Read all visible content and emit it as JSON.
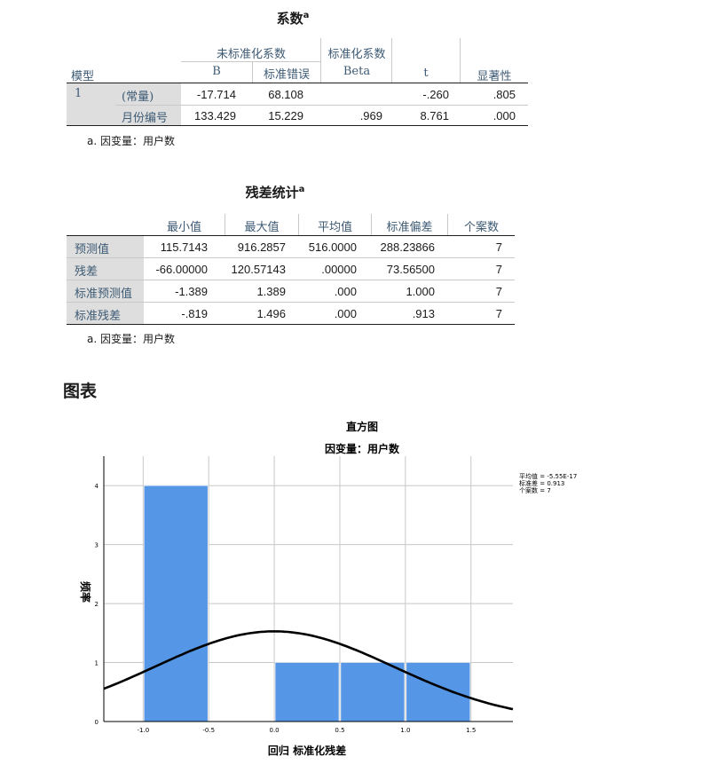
{
  "coef": {
    "title": "系数",
    "sup": "a",
    "header": {
      "unstd": "未标准化系数",
      "std": "标准化系数",
      "model": "模型",
      "b": "B",
      "se": "标准错误",
      "beta": "Beta",
      "t": "t",
      "sig": "显著性"
    },
    "model_no": "1",
    "rows": [
      {
        "label": "(常量)",
        "b": "-17.714",
        "se": "68.108",
        "beta": "",
        "t": "-.260",
        "sig": ".805"
      },
      {
        "label": "月份编号",
        "b": "133.429",
        "se": "15.229",
        "beta": ".969",
        "t": "8.761",
        "sig": ".000"
      }
    ],
    "note": "a. 因变量：用户数"
  },
  "resid": {
    "title": "残差统计",
    "sup": "a",
    "cols": [
      "最小值",
      "最大值",
      "平均值",
      "标准偏差",
      "个案数"
    ],
    "rows": [
      {
        "label": "预测值",
        "v": [
          "115.7143",
          "916.2857",
          "516.0000",
          "288.23866",
          "7"
        ]
      },
      {
        "label": "残差",
        "v": [
          "-66.00000",
          "120.57143",
          ".00000",
          "73.56500",
          "7"
        ]
      },
      {
        "label": "标准预测值",
        "v": [
          "-1.389",
          "1.389",
          ".000",
          "1.000",
          "7"
        ]
      },
      {
        "label": "标准残差",
        "v": [
          "-.819",
          "1.496",
          ".000",
          ".913",
          "7"
        ]
      }
    ],
    "note": "a. 因变量：用户数"
  },
  "section_title": "图表",
  "chart_data": {
    "type": "bar",
    "title": "直方图",
    "subtitle": "因变量：用户数",
    "xlabel": "回归 标准化残差",
    "ylabel": "频率",
    "bins": [
      [
        -1.0,
        -0.5
      ],
      [
        0.0,
        0.5
      ],
      [
        0.5,
        1.0
      ],
      [
        1.0,
        1.5
      ]
    ],
    "values": [
      4,
      1,
      1,
      1
    ],
    "xlim": [
      -1.3,
      1.82
    ],
    "ylim": [
      0,
      4.5
    ],
    "xticks": [
      "-1.0",
      "-0.5",
      "0.0",
      "0.5",
      "1.0",
      "1.5"
    ],
    "xtick_values": [
      -1.0,
      -0.5,
      0.0,
      0.5,
      1.0,
      1.5
    ],
    "yticks": [
      "0",
      "1",
      "2",
      "3",
      "4"
    ],
    "ytick_values": [
      0,
      1,
      2,
      3,
      4
    ],
    "normal_curve": {
      "mean": 0,
      "sd": 0.913,
      "n": 7,
      "bin_width": 0.5
    },
    "stats": [
      "平均值 = -5.55E-17",
      "标准差 = 0.913",
      "个案数 = 7"
    ],
    "bar_color": "#5596e6",
    "curve_color": "#000000",
    "grid": true
  }
}
